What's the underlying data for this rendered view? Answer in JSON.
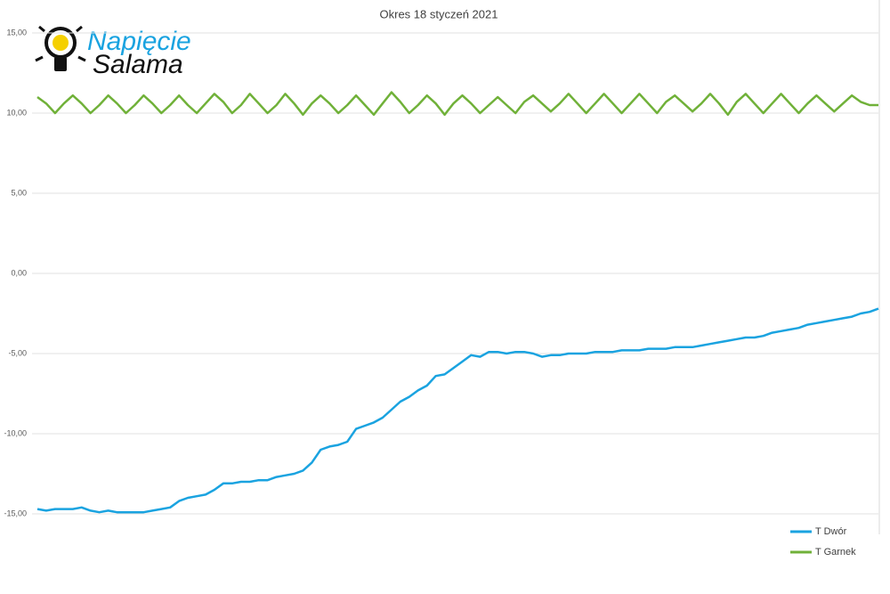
{
  "logo": {
    "line1": "Napięcie",
    "line2": "Salama"
  },
  "chart_data": {
    "type": "line",
    "title": "Okres 18 styczeń 2021",
    "ylim": [
      -16,
      15
    ],
    "yticks": [
      {
        "value": 15,
        "label": "15,00"
      },
      {
        "value": 10,
        "label": "10,00"
      },
      {
        "value": 5,
        "label": "5,00"
      },
      {
        "value": 0,
        "label": "0,00"
      },
      {
        "value": -5,
        "label": "-5,00"
      },
      {
        "value": -10,
        "label": "-10,00"
      },
      {
        "value": -15,
        "label": "-15,00"
      }
    ],
    "negative_tick_color": "#c00000",
    "grid": true,
    "legend": "bottom-right",
    "series": [
      {
        "name": "T Dwór",
        "color": "#1aa3e0",
        "values": [
          -14.7,
          -14.8,
          -14.7,
          -14.7,
          -14.7,
          -14.6,
          -14.8,
          -14.9,
          -14.8,
          -14.9,
          -14.9,
          -14.9,
          -14.9,
          -14.8,
          -14.7,
          -14.6,
          -14.2,
          -14.0,
          -13.9,
          -13.8,
          -13.5,
          -13.1,
          -13.1,
          -13.0,
          -13.0,
          -12.9,
          -12.9,
          -12.7,
          -12.6,
          -12.5,
          -12.3,
          -11.8,
          -11.0,
          -10.8,
          -10.7,
          -10.5,
          -9.7,
          -9.5,
          -9.3,
          -9.0,
          -8.5,
          -8.0,
          -7.7,
          -7.3,
          -7.0,
          -6.4,
          -6.3,
          -5.9,
          -5.5,
          -5.1,
          -5.2,
          -4.9,
          -4.9,
          -5.0,
          -4.9,
          -4.9,
          -5.0,
          -5.2,
          -5.1,
          -5.1,
          -5.0,
          -5.0,
          -5.0,
          -4.9,
          -4.9,
          -4.9,
          -4.8,
          -4.8,
          -4.8,
          -4.7,
          -4.7,
          -4.7,
          -4.6,
          -4.6,
          -4.6,
          -4.5,
          -4.4,
          -4.3,
          -4.2,
          -4.1,
          -4.0,
          -4.0,
          -3.9,
          -3.7,
          -3.6,
          -3.5,
          -3.4,
          -3.2,
          -3.1,
          -3.0,
          -2.9,
          -2.8,
          -2.7,
          -2.5,
          -2.4,
          -2.2
        ]
      },
      {
        "name": "T Garnek",
        "color": "#70b139",
        "values": [
          11.0,
          10.6,
          10.0,
          10.6,
          11.1,
          10.6,
          10.0,
          10.5,
          11.1,
          10.6,
          10.0,
          10.5,
          11.1,
          10.6,
          10.0,
          10.5,
          11.1,
          10.5,
          10.0,
          10.6,
          11.2,
          10.7,
          10.0,
          10.5,
          11.2,
          10.6,
          10.0,
          10.5,
          11.2,
          10.6,
          9.9,
          10.6,
          11.1,
          10.6,
          10.0,
          10.5,
          11.1,
          10.5,
          9.9,
          10.6,
          11.3,
          10.7,
          10.0,
          10.5,
          11.1,
          10.6,
          9.9,
          10.6,
          11.1,
          10.6,
          10.0,
          10.5,
          11.0,
          10.5,
          10.0,
          10.7,
          11.1,
          10.6,
          10.1,
          10.6,
          11.2,
          10.6,
          10.0,
          10.6,
          11.2,
          10.6,
          10.0,
          10.6,
          11.2,
          10.6,
          10.0,
          10.7,
          11.1,
          10.6,
          10.1,
          10.6,
          11.2,
          10.6,
          9.9,
          10.7,
          11.2,
          10.6,
          10.0,
          10.6,
          11.2,
          10.6,
          10.0,
          10.6,
          11.1,
          10.6,
          10.1,
          10.6,
          11.1,
          10.7,
          10.5,
          10.5
        ]
      }
    ]
  }
}
